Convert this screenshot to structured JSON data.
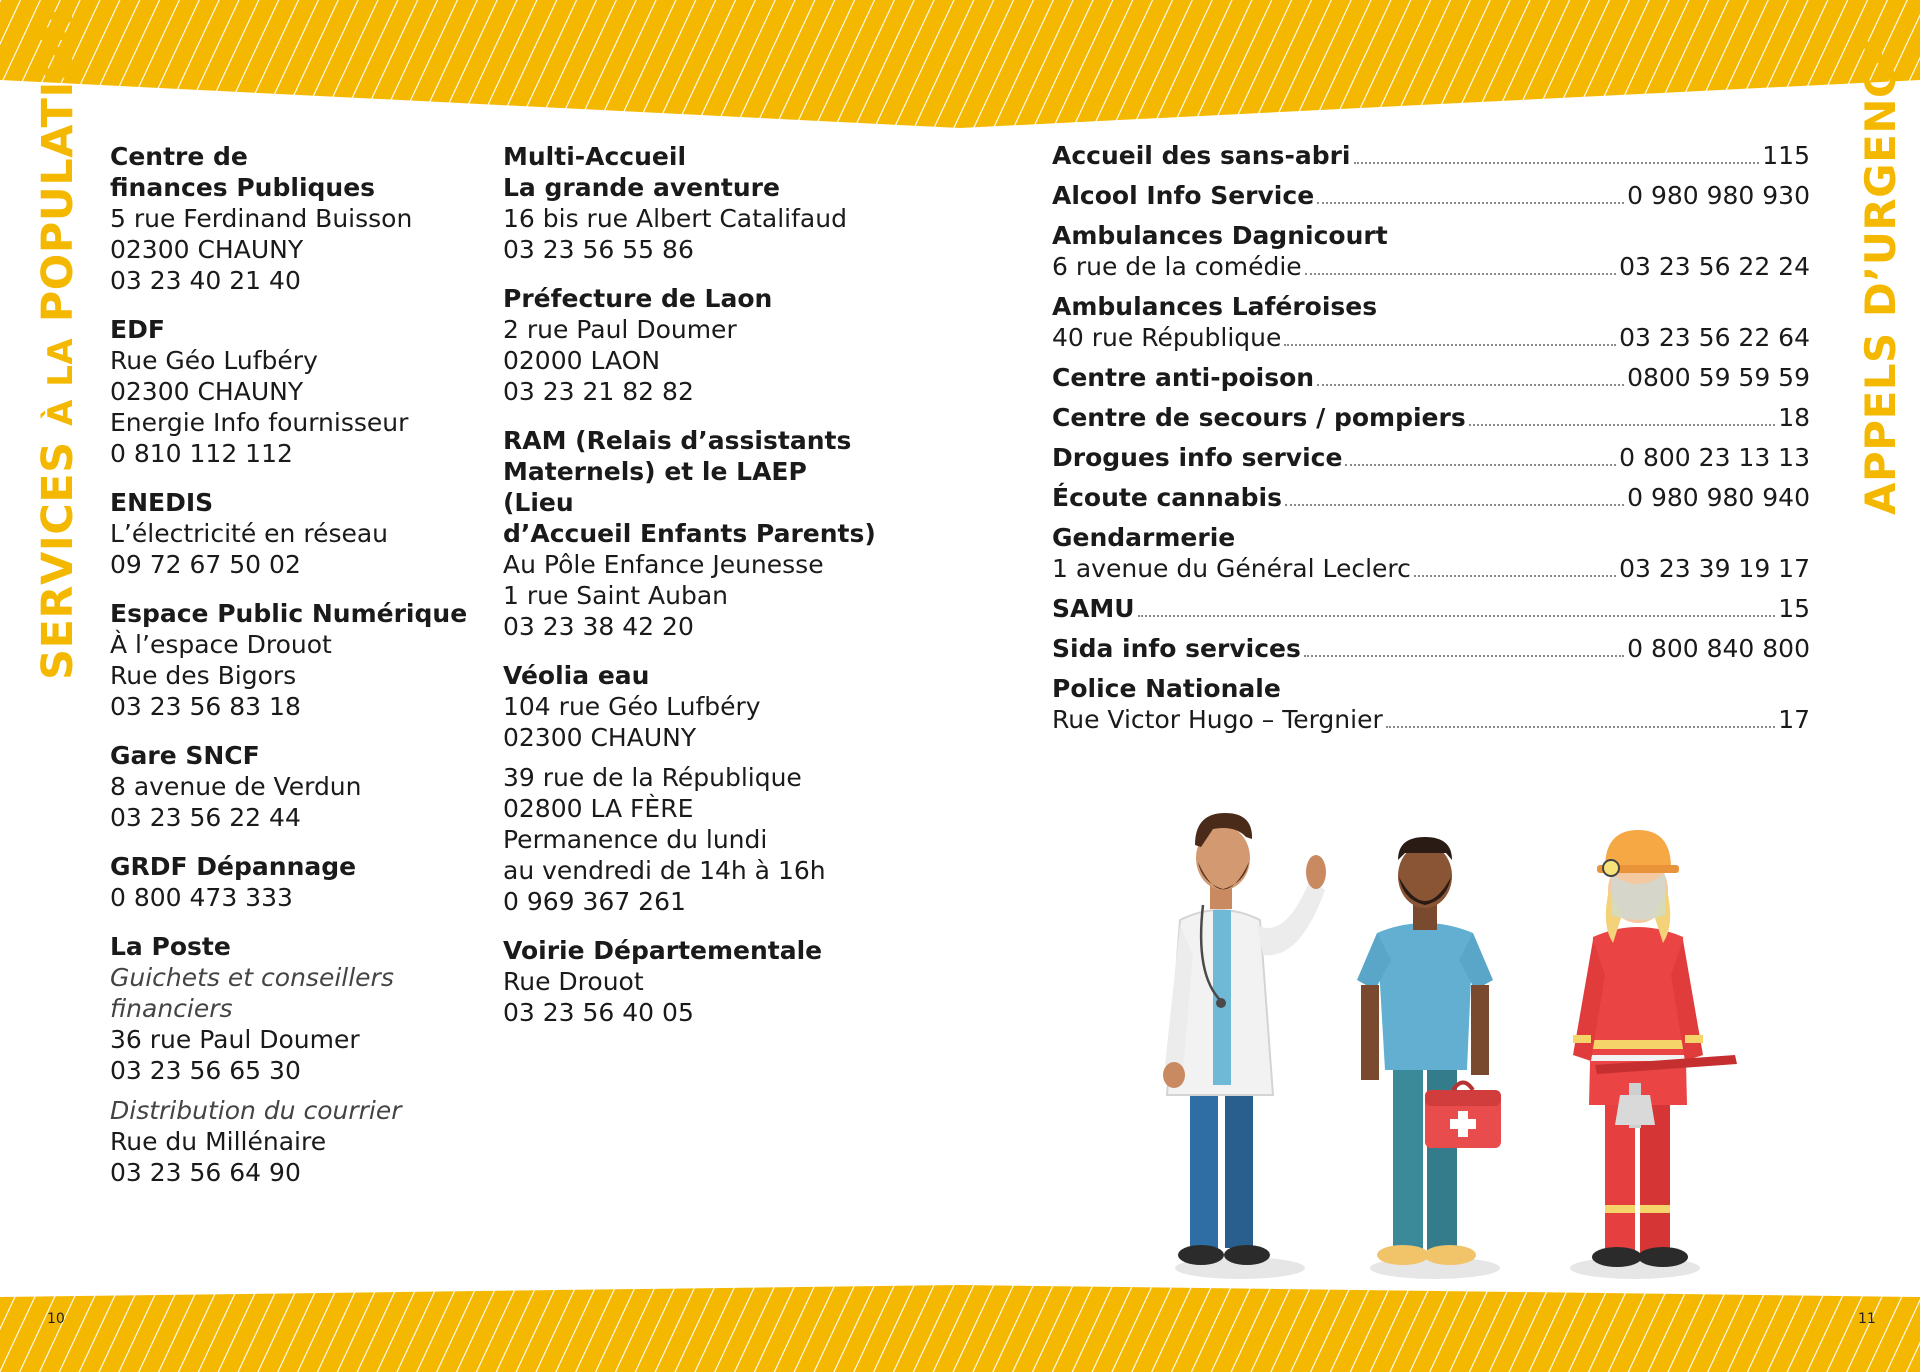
{
  "colors": {
    "accent": "#f5b800",
    "stripe": "#ffffff"
  },
  "left_page": {
    "title_parts": [
      "SERVICES ",
      "À LA",
      " POPULATION"
    ],
    "page_number": "10",
    "col_a": [
      {
        "heading": "Centre de",
        "heading2": "finances Publiques",
        "lines": [
          "5 rue Ferdinand Buisson",
          "02300 CHAUNY",
          "03 23 40 21 40"
        ]
      },
      {
        "heading": "EDF",
        "lines": [
          "Rue Géo Lufbéry",
          "02300 CHAUNY",
          "Energie Info fournisseur",
          "0 810 112 112"
        ]
      },
      {
        "heading": "ENEDIS",
        "lines": [
          "L’électricité en réseau",
          "09 72 67 50 02"
        ]
      },
      {
        "heading": "Espace Public Numérique",
        "lines": [
          "À l’espace Drouot",
          "Rue des Bigors",
          "03 23 56 83 18"
        ]
      },
      {
        "heading": "Gare SNCF",
        "lines": [
          "8 avenue de Verdun",
          "03 23 56 22 44"
        ]
      },
      {
        "heading": "GRDF Dépannage",
        "lines": [
          "0 800 473 333"
        ]
      }
    ],
    "la_poste": {
      "heading": "La Poste",
      "italic1": "Guichets et conseillers financiers",
      "lines1": [
        "36 rue Paul Doumer",
        "03 23 56 65 30"
      ],
      "italic2": "Distribution du courrier",
      "lines2": [
        "Rue du Millénaire",
        "03 23 56 64 90"
      ]
    },
    "col_b": [
      {
        "heading": "Multi-Accueil",
        "heading2": "La grande aventure",
        "lines": [
          "16 bis rue Albert Catalifaud",
          "03 23 56 55 86"
        ]
      },
      {
        "heading": "Préfecture de Laon",
        "lines": [
          "2 rue Paul Doumer",
          "02000 LAON",
          "03 23 21 82 82"
        ]
      },
      {
        "heading": "RAM (Relais d’assistants",
        "heading2": "Maternels) et le LAEP (Lieu",
        "heading3": "d’Accueil Enfants Parents)",
        "lines": [
          "Au Pôle Enfance Jeunesse",
          "1 rue Saint Auban",
          "03 23 38 42 20"
        ]
      }
    ],
    "veolia": {
      "heading": "Véolia eau",
      "lines1": [
        "104 rue Géo Lufbéry",
        "02300 CHAUNY"
      ],
      "lines2": [
        "39 rue de la République",
        "02800 LA FÈRE",
        "Permanence du lundi",
        "au vendredi de 14h à 16h",
        "0 969 367 261"
      ]
    },
    "voirie": {
      "heading": "Voirie Départementale",
      "lines": [
        "Rue Drouot",
        "03 23 56 40 05"
      ]
    }
  },
  "right_page": {
    "title": "APPELS D’URGENCE",
    "page_number": "11",
    "emergency": [
      {
        "label": "Accueil des sans-abri",
        "number": "115"
      },
      {
        "label": "Alcool Info Service",
        "number": "0 980 980 930"
      },
      {
        "heading": "Ambulances Dagnicourt",
        "label": "6 rue de la comédie",
        "number": "03 23 56 22 24"
      },
      {
        "heading": "Ambulances Laféroises",
        "label": "40 rue République",
        "number": "03 23 56 22 64"
      },
      {
        "label": "Centre anti-poison",
        "number": "0800 59 59 59"
      },
      {
        "label": "Centre de secours / pompiers",
        "number": "18"
      },
      {
        "label": "Drogues info service",
        "number": "0 800 23 13 13"
      },
      {
        "label": "Écoute cannabis",
        "number": "0 980 980 940"
      },
      {
        "heading": "Gendarmerie",
        "label": "1 avenue du Général Leclerc",
        "number": "03 23 39 19 17"
      },
      {
        "label": "SAMU",
        "number": "15"
      },
      {
        "label": "Sida info services",
        "number": "0 800 840 800"
      },
      {
        "heading": "Police Nationale",
        "label": "Rue Victor Hugo – Tergnier",
        "number": "17"
      }
    ]
  }
}
